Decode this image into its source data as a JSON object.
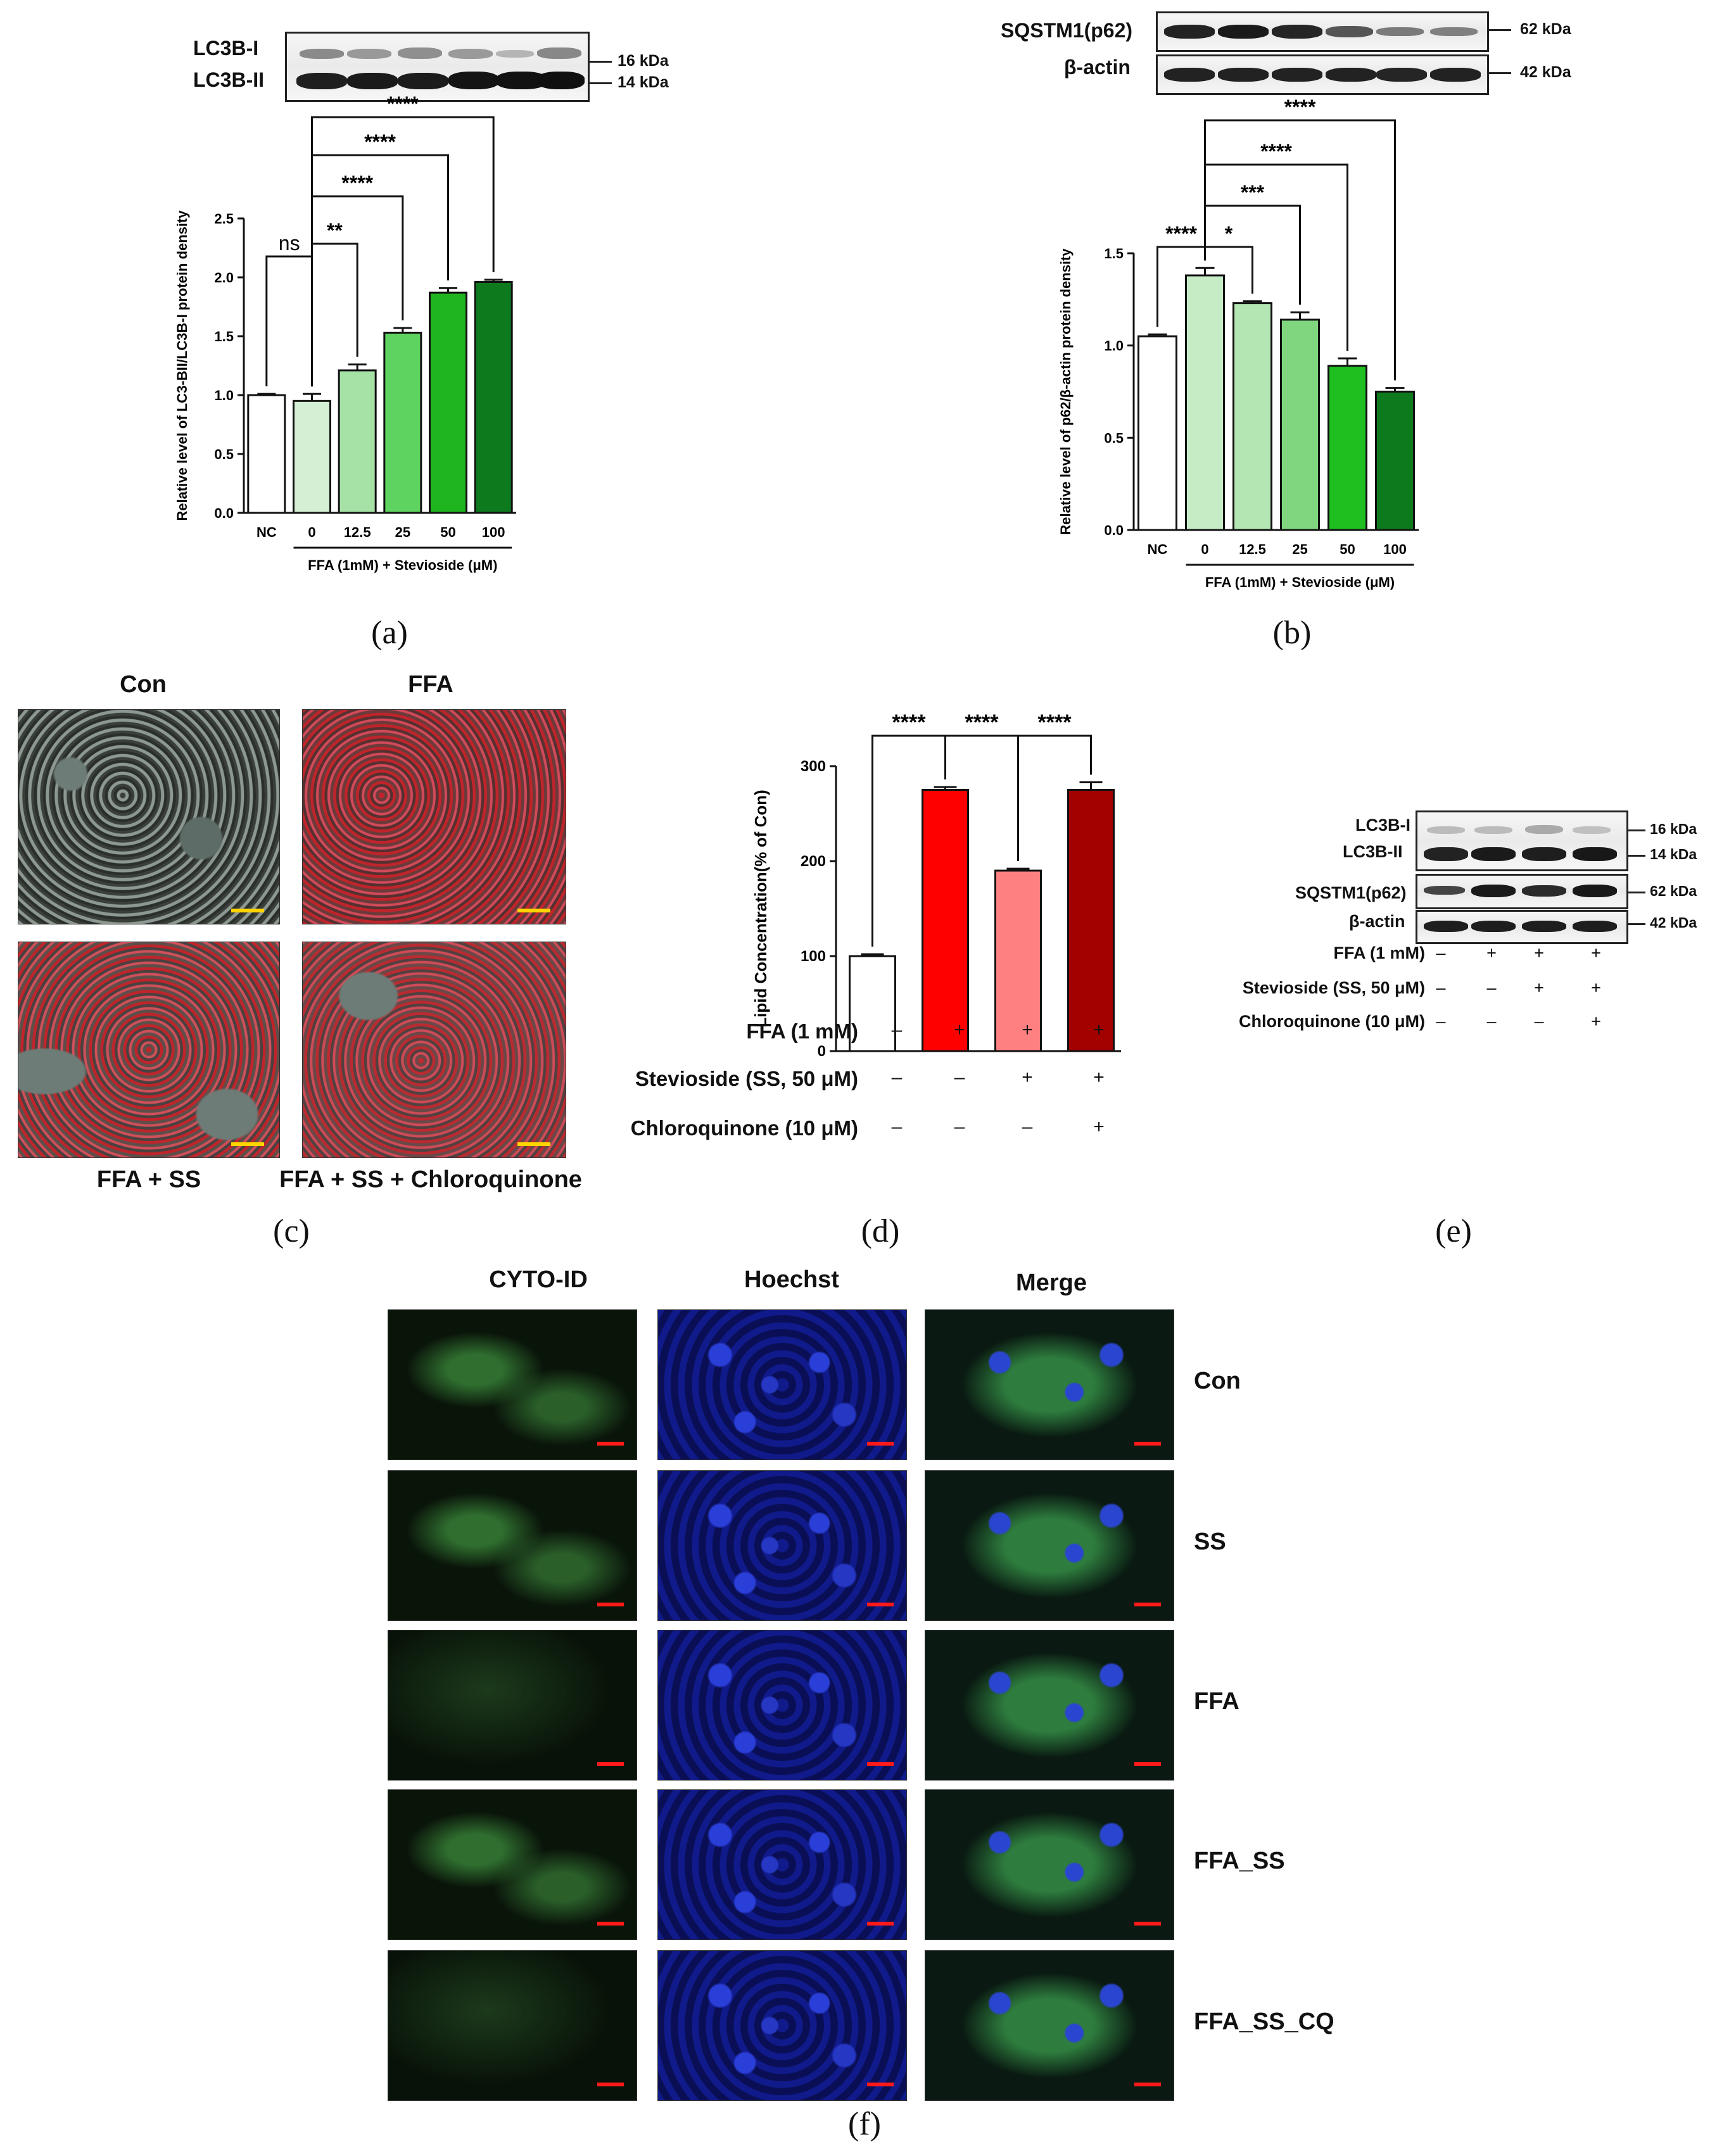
{
  "panel_labels": {
    "a": "(a)",
    "b": "(b)",
    "c": "(c)",
    "d": "(d)",
    "e": "(e)",
    "f": "(f)"
  },
  "panel_a": {
    "blot_labels": [
      "LC3B-I",
      "LC3B-II"
    ],
    "kda": [
      "16 kDa",
      "14 kDa"
    ]
  },
  "panel_b": {
    "blot_labels": [
      "SQSTM1(p62)",
      "β-actin"
    ],
    "kda": [
      "62 kDa",
      "42 kDa"
    ]
  },
  "panel_c": {
    "titles": [
      "Con",
      "FFA",
      "FFA + SS",
      "FFA + SS + Chloroquinone"
    ]
  },
  "panel_e": {
    "blot_labels": [
      "LC3B-I",
      "LC3B-II",
      "SQSTM1(p62)",
      "β-actin"
    ],
    "kda": [
      "16 kDa",
      "14 kDa",
      "62 kDa",
      "42 kDa"
    ],
    "rows": [
      {
        "label": "FFA (1 mM)",
        "signs": [
          "–",
          "+",
          "+",
          "+"
        ]
      },
      {
        "label": "Stevioside (SS, 50 μM)",
        "signs": [
          "–",
          "–",
          "+",
          "+"
        ]
      },
      {
        "label": "Chloroquinone (10 μM)",
        "signs": [
          "–",
          "–",
          "–",
          "+"
        ]
      }
    ]
  },
  "panel_f": {
    "columns": [
      "CYTO-ID",
      "Hoechst",
      "Merge"
    ],
    "rows": [
      "Con",
      "SS",
      "FFA",
      "FFA_SS",
      "FFA_SS_CQ"
    ]
  },
  "colors": {
    "bar_light": "#d4efd4",
    "bar_mid": "#a6e1a6",
    "bar_green": "#5fd35f",
    "bar_bright": "#1fb51f",
    "bar_dark": "#0d7a1d",
    "red": "#ff0000",
    "pink": "#ff8080",
    "darkred": "#a30000",
    "scale_yellow": "#ffd400",
    "scale_red": "#ff1a1a"
  },
  "chart_data": [
    {
      "id": "a",
      "type": "bar",
      "categories": [
        "NC",
        "0",
        "12.5",
        "25",
        "50",
        "100"
      ],
      "values": [
        1.0,
        0.95,
        1.21,
        1.53,
        1.87,
        1.96
      ],
      "errors": [
        0.01,
        0.06,
        0.05,
        0.04,
        0.04,
        0.02
      ],
      "colors": [
        "#ffffff",
        "#d4efd4",
        "#a6e1a6",
        "#5fd35f",
        "#1fb51f",
        "#0d7a1d"
      ],
      "ylabel": "Relative level of LC3-BII/LC3B-I protein density",
      "xlabel": "FFA (1mM) + Stevioside (μM)",
      "ylim": [
        0,
        2.5
      ],
      "yticks": [
        "0.0",
        "0.5",
        "1.0",
        "1.5",
        "2.0",
        "2.5"
      ],
      "significance": [
        {
          "from": 0,
          "to": 1,
          "label": "ns"
        },
        {
          "from": 1,
          "to": 2,
          "label": "**"
        },
        {
          "from": 1,
          "to": 3,
          "label": "****"
        },
        {
          "from": 1,
          "to": 4,
          "label": "****"
        },
        {
          "from": 1,
          "to": 5,
          "label": "****"
        }
      ]
    },
    {
      "id": "b",
      "type": "bar",
      "categories": [
        "NC",
        "0",
        "12.5",
        "25",
        "50",
        "100"
      ],
      "values": [
        1.05,
        1.38,
        1.23,
        1.14,
        0.89,
        0.75
      ],
      "errors": [
        0.01,
        0.04,
        0.01,
        0.04,
        0.04,
        0.02
      ],
      "colors": [
        "#ffffff",
        "#c6ecc6",
        "#b3e6b3",
        "#7fd67f",
        "#1fbf1f",
        "#0d7a1d"
      ],
      "ylabel": "Relative level of p62/β-actin protein density",
      "xlabel": "FFA (1mM) + Stevioside (μM)",
      "ylim": [
        0,
        1.5
      ],
      "yticks": [
        "0.0",
        "0.5",
        "1.0",
        "1.5"
      ],
      "significance": [
        {
          "from": 0,
          "to": 1,
          "label": "****"
        },
        {
          "from": 1,
          "to": 2,
          "label": "*"
        },
        {
          "from": 1,
          "to": 3,
          "label": "***"
        },
        {
          "from": 1,
          "to": 4,
          "label": "****"
        },
        {
          "from": 1,
          "to": 5,
          "label": "****"
        }
      ]
    },
    {
      "id": "d",
      "type": "bar",
      "categories": [
        "1",
        "2",
        "3",
        "4"
      ],
      "values": [
        100,
        275,
        190,
        275
      ],
      "errors": [
        2,
        3,
        2,
        8
      ],
      "colors": [
        "#ffffff",
        "#ff0000",
        "#ff8080",
        "#a30000"
      ],
      "ylabel": "Lipid Concentration(% of Con)",
      "ylim": [
        0,
        300
      ],
      "yticks": [
        "0",
        "100",
        "200",
        "300"
      ],
      "significance": [
        {
          "from": 0,
          "to": 1,
          "label": "****"
        },
        {
          "from": 1,
          "to": 2,
          "label": "****"
        },
        {
          "from": 2,
          "to": 3,
          "label": "****"
        }
      ],
      "conditions": [
        {
          "label": "FFA (1 mM)",
          "signs": [
            "–",
            "+",
            "+",
            "+"
          ]
        },
        {
          "label": "Stevioside (SS, 50 μM)",
          "signs": [
            "–",
            "–",
            "+",
            "+"
          ]
        },
        {
          "label": "Chloroquinone (10 μM)",
          "signs": [
            "–",
            "–",
            "–",
            "+"
          ]
        }
      ]
    }
  ]
}
